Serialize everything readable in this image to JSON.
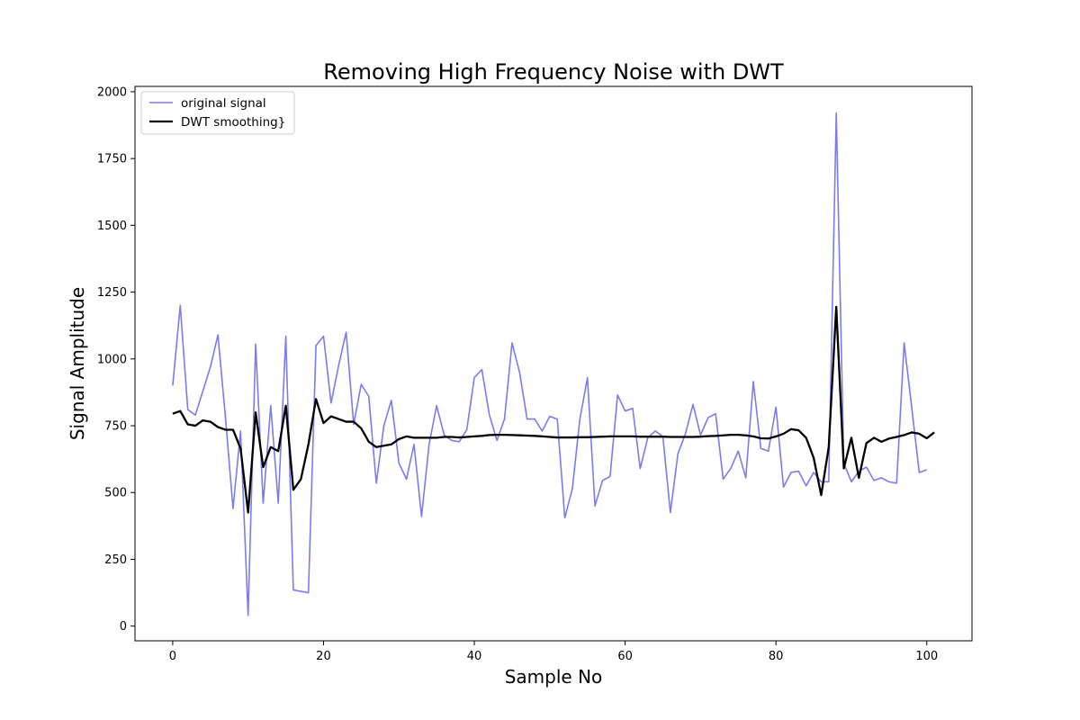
{
  "chart_data": {
    "type": "line",
    "title": "Removing High Frequency Noise with DWT",
    "xlabel": "Sample No",
    "ylabel": "Signal Amplitude",
    "xlim": [
      -5,
      106
    ],
    "ylim": [
      -55,
      2020
    ],
    "xticks": [
      0,
      20,
      40,
      60,
      80,
      100
    ],
    "yticks": [
      0,
      250,
      500,
      750,
      1000,
      1250,
      1500,
      1750,
      2000
    ],
    "grid": false,
    "legend_position": "upper-left",
    "series": [
      {
        "name": "original signal",
        "color": "#7b7bf0",
        "opacity": 1,
        "line_width": 1.6,
        "x": [
          0,
          1,
          2,
          3,
          4,
          5,
          6,
          7,
          8,
          9,
          10,
          11,
          12,
          13,
          14,
          15,
          16,
          17,
          18,
          19,
          20,
          21,
          22,
          23,
          24,
          25,
          26,
          27,
          28,
          29,
          30,
          31,
          32,
          33,
          34,
          35,
          36,
          37,
          38,
          39,
          40,
          41,
          42,
          43,
          44,
          45,
          46,
          47,
          48,
          49,
          50,
          51,
          52,
          53,
          54,
          55,
          56,
          57,
          58,
          59,
          60,
          61,
          62,
          63,
          64,
          65,
          66,
          67,
          68,
          69,
          70,
          71,
          72,
          73,
          74,
          75,
          76,
          77,
          78,
          79,
          80,
          81,
          82,
          83,
          84,
          85,
          86,
          87,
          88,
          89,
          90,
          91,
          92,
          93,
          94,
          95,
          96,
          97,
          98,
          99,
          100
        ],
        "values": [
          900,
          1200,
          810,
          790,
          880,
          970,
          1090,
          780,
          440,
          730,
          40,
          1055,
          460,
          825,
          460,
          1085,
          135,
          130,
          125,
          1050,
          1085,
          835,
          975,
          1100,
          755,
          905,
          860,
          535,
          750,
          845,
          610,
          550,
          680,
          410,
          680,
          825,
          715,
          695,
          690,
          735,
          930,
          960,
          790,
          695,
          775,
          1060,
          950,
          775,
          775,
          730,
          785,
          775,
          405,
          515,
          775,
          930,
          450,
          545,
          560,
          865,
          805,
          815,
          590,
          705,
          730,
          710,
          425,
          645,
          720,
          830,
          715,
          780,
          795,
          550,
          590,
          655,
          555,
          915,
          665,
          655,
          820,
          520,
          575,
          580,
          525,
          575,
          540,
          540,
          1920,
          610,
          540,
          580,
          595,
          545,
          555,
          540,
          535,
          1060,
          820,
          575,
          585
        ]
      },
      {
        "name": "DWT smoothing}",
        "color": "#000000",
        "line_width": 2.3,
        "x": [
          0,
          1,
          2,
          3,
          4,
          5,
          6,
          7,
          8,
          9,
          10,
          11,
          12,
          13,
          14,
          15,
          16,
          17,
          18,
          19,
          20,
          21,
          22,
          23,
          24,
          25,
          26,
          27,
          28,
          29,
          30,
          31,
          32,
          33,
          34,
          35,
          36,
          37,
          38,
          39,
          40,
          41,
          42,
          43,
          44,
          45,
          46,
          47,
          48,
          49,
          50,
          51,
          52,
          53,
          54,
          55,
          56,
          57,
          58,
          59,
          60,
          61,
          62,
          63,
          64,
          65,
          66,
          67,
          68,
          69,
          70,
          71,
          72,
          73,
          74,
          75,
          76,
          77,
          78,
          79,
          80,
          81,
          82,
          83,
          84,
          85,
          86,
          87,
          88,
          89,
          90,
          91,
          92,
          93,
          94,
          95,
          96,
          97,
          98,
          99,
          100,
          101
        ],
        "values": [
          795,
          805,
          755,
          750,
          770,
          765,
          745,
          735,
          735,
          665,
          425,
          800,
          595,
          670,
          655,
          825,
          510,
          550,
          680,
          850,
          760,
          785,
          775,
          765,
          765,
          740,
          690,
          670,
          675,
          680,
          700,
          710,
          705,
          705,
          705,
          705,
          708,
          708,
          706,
          708,
          710,
          712,
          715,
          716,
          716,
          715,
          714,
          713,
          712,
          710,
          708,
          706,
          706,
          706,
          707,
          707,
          708,
          709,
          710,
          710,
          710,
          710,
          709,
          709,
          709,
          709,
          708,
          708,
          708,
          708,
          709,
          711,
          712,
          714,
          716,
          716,
          714,
          710,
          703,
          702,
          710,
          720,
          737,
          733,
          705,
          630,
          490,
          670,
          1195,
          590,
          705,
          555,
          685,
          705,
          690,
          702,
          708,
          715,
          725,
          720,
          703,
          725
        ]
      }
    ]
  }
}
